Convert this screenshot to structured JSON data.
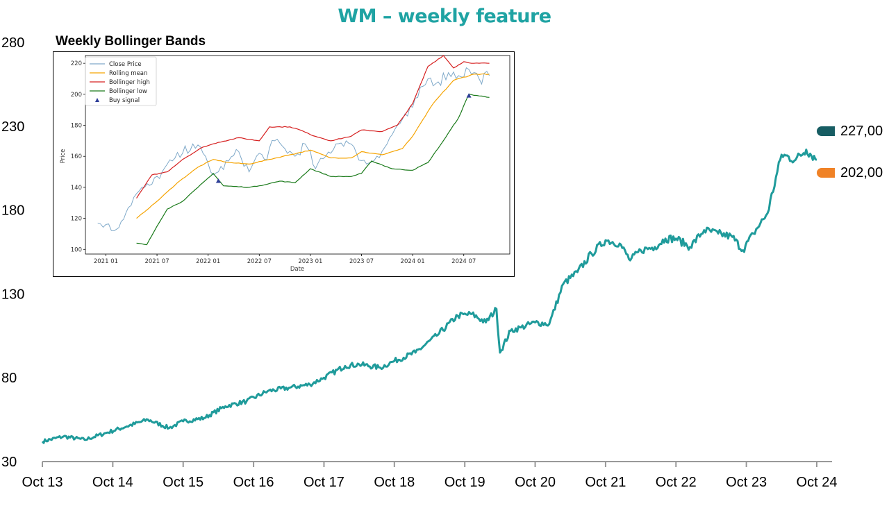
{
  "title": "WM – weekly feature",
  "colors": {
    "title": "#1fa3a3",
    "main_line": "#1f9b9b",
    "badge_high": "#175d63",
    "badge_low": "#f08226",
    "close_price": "#7fa9c9",
    "rolling_mean": "#f5a300",
    "bollinger_high": "#d62020",
    "bollinger_low": "#1a7a1a",
    "buy_signal": "#2f3f99"
  },
  "badges": {
    "high": {
      "label": "227,00",
      "value": 227
    },
    "low": {
      "label": "202,00",
      "value": 202
    }
  },
  "chart_data": [
    {
      "type": "line",
      "title": "WM – weekly feature",
      "xlabel": "",
      "ylabel": "",
      "ylim": [
        30,
        280
      ],
      "xlim": [
        2013.0,
        2024.0
      ],
      "yticks": [
        30,
        80,
        130,
        180,
        230,
        280
      ],
      "ytick_labels": [
        "30",
        "80",
        "130",
        "180",
        "230",
        "280"
      ],
      "xtick_labels": [
        "Oct 13",
        "Oct 14",
        "Oct 15",
        "Oct 16",
        "Oct 17",
        "Oct 18",
        "Oct 19",
        "Oct 20",
        "Oct 21",
        "Oct 22",
        "Oct 23",
        "Oct 24"
      ],
      "grid": false,
      "series": [
        {
          "name": "WM",
          "x": [
            2013.0,
            2013.3,
            2013.6,
            2013.9,
            2014.2,
            2014.5,
            2014.8,
            2015.0,
            2015.3,
            2015.6,
            2015.9,
            2016.2,
            2016.5,
            2016.8,
            2017.0,
            2017.3,
            2017.5,
            2017.8,
            2018.0,
            2018.3,
            2018.6,
            2018.9,
            2019.1,
            2019.3,
            2019.45,
            2019.5,
            2019.65,
            2019.8,
            2020.0,
            2020.2,
            2020.4,
            2020.6,
            2020.8,
            2021.0,
            2021.2,
            2021.35,
            2021.5,
            2021.7,
            2021.85,
            2022.0,
            2022.2,
            2022.4,
            2022.6,
            2022.8,
            2022.95,
            2023.1,
            2023.3,
            2023.5,
            2023.7,
            2023.85,
            2024.0
          ],
          "values": [
            42,
            45,
            43,
            47,
            51,
            55,
            50,
            54,
            56,
            63,
            66,
            72,
            74,
            76,
            80,
            87,
            88,
            86,
            90,
            95,
            105,
            117,
            118,
            113,
            121,
            95,
            108,
            110,
            113,
            112,
            136,
            143,
            154,
            162,
            160,
            150,
            156,
            158,
            163,
            163,
            158,
            168,
            166,
            164,
            156,
            166,
            178,
            213,
            210,
            216,
            210
          ]
        }
      ],
      "annotations": [
        "227,00",
        "202,00"
      ]
    },
    {
      "type": "line",
      "title": "Weekly Bollinger Bands",
      "xlabel": "Date",
      "ylabel": "Price",
      "ylim": [
        97,
        225
      ],
      "xlim": [
        2020.8,
        2024.95
      ],
      "yticks": [
        100,
        120,
        140,
        160,
        180,
        200,
        220
      ],
      "ytick_labels": [
        "100",
        "120",
        "140",
        "160",
        "180",
        "200",
        "220"
      ],
      "xticks": [
        2021.0,
        2021.5,
        2022.0,
        2022.5,
        2023.0,
        2023.5,
        2024.0,
        2024.5
      ],
      "xtick_labels": [
        "2021 01",
        "2021 07",
        "2022 01",
        "2022 07",
        "2023 01",
        "2023 07",
        "2024 01",
        "2024 07"
      ],
      "legend": [
        "Close Price",
        "Rolling mean",
        "Bollinger high",
        "Bollinger low",
        "Buy signal"
      ],
      "legend_position": "top-left",
      "grid": false,
      "series": [
        {
          "name": "Close Price",
          "x": [
            2020.92,
            2021.0,
            2021.08,
            2021.15,
            2021.22,
            2021.3,
            2021.38,
            2021.45,
            2021.55,
            2021.65,
            2021.75,
            2021.85,
            2021.95,
            2022.05,
            2022.1,
            2022.2,
            2022.3,
            2022.4,
            2022.5,
            2022.55,
            2022.65,
            2022.75,
            2022.85,
            2022.95,
            2023.05,
            2023.15,
            2023.25,
            2023.35,
            2023.45,
            2023.55,
            2023.65,
            2023.75,
            2023.85,
            2023.95,
            2024.05,
            2024.15,
            2024.25,
            2024.35,
            2024.45,
            2024.55,
            2024.65,
            2024.75
          ],
          "values": [
            117,
            116,
            112,
            118,
            127,
            136,
            140,
            142,
            150,
            157,
            162,
            168,
            162,
            148,
            150,
            157,
            163,
            150,
            162,
            158,
            170,
            165,
            160,
            168,
            152,
            160,
            168,
            170,
            162,
            155,
            160,
            168,
            180,
            186,
            198,
            210,
            208,
            214,
            212,
            216,
            210,
            212
          ]
        },
        {
          "name": "Rolling mean",
          "x": [
            2021.3,
            2021.5,
            2021.7,
            2021.9,
            2022.05,
            2022.2,
            2022.4,
            2022.6,
            2022.8,
            2023.0,
            2023.2,
            2023.4,
            2023.5,
            2023.7,
            2023.9,
            2024.0,
            2024.2,
            2024.4,
            2024.6,
            2024.75
          ],
          "values": [
            120,
            131,
            143,
            153,
            158,
            156,
            155,
            158,
            161,
            164,
            159,
            159,
            163,
            161,
            165,
            173,
            194,
            209,
            213,
            213
          ]
        },
        {
          "name": "Bollinger high",
          "x": [
            2021.3,
            2021.45,
            2021.6,
            2021.75,
            2021.95,
            2022.1,
            2022.3,
            2022.5,
            2022.6,
            2022.8,
            2022.9,
            2023.0,
            2023.2,
            2023.4,
            2023.5,
            2023.7,
            2023.85,
            2024.0,
            2024.15,
            2024.3,
            2024.4,
            2024.5,
            2024.6,
            2024.75
          ],
          "values": [
            133,
            148,
            150,
            158,
            166,
            169,
            172,
            170,
            179,
            179,
            177,
            174,
            170,
            173,
            177,
            176,
            180,
            194,
            218,
            225,
            217,
            221,
            220,
            220
          ]
        },
        {
          "name": "Bollinger low",
          "x": [
            2021.3,
            2021.4,
            2021.5,
            2021.6,
            2021.75,
            2021.9,
            2022.05,
            2022.15,
            2022.4,
            2022.5,
            2022.7,
            2022.85,
            2023.0,
            2023.2,
            2023.4,
            2023.5,
            2023.6,
            2023.8,
            2024.0,
            2024.15,
            2024.3,
            2024.45,
            2024.55,
            2024.75
          ],
          "values": [
            104,
            103,
            115,
            126,
            131,
            140,
            149,
            141,
            140,
            141,
            144,
            143,
            152,
            147,
            147,
            149,
            157,
            152,
            151,
            156,
            170,
            185,
            200,
            198
          ]
        },
        {
          "name": "Buy signal",
          "type": "scatter",
          "x": [
            2022.1,
            2024.55
          ],
          "values": [
            144,
            199
          ]
        }
      ]
    }
  ],
  "inset": {
    "title": "Weekly Bollinger Bands",
    "xlabel": "Date",
    "ylabel": "Price",
    "legend": [
      "Close Price",
      "Rolling mean",
      "Bollinger high",
      "Bollinger low",
      "Buy signal"
    ]
  }
}
